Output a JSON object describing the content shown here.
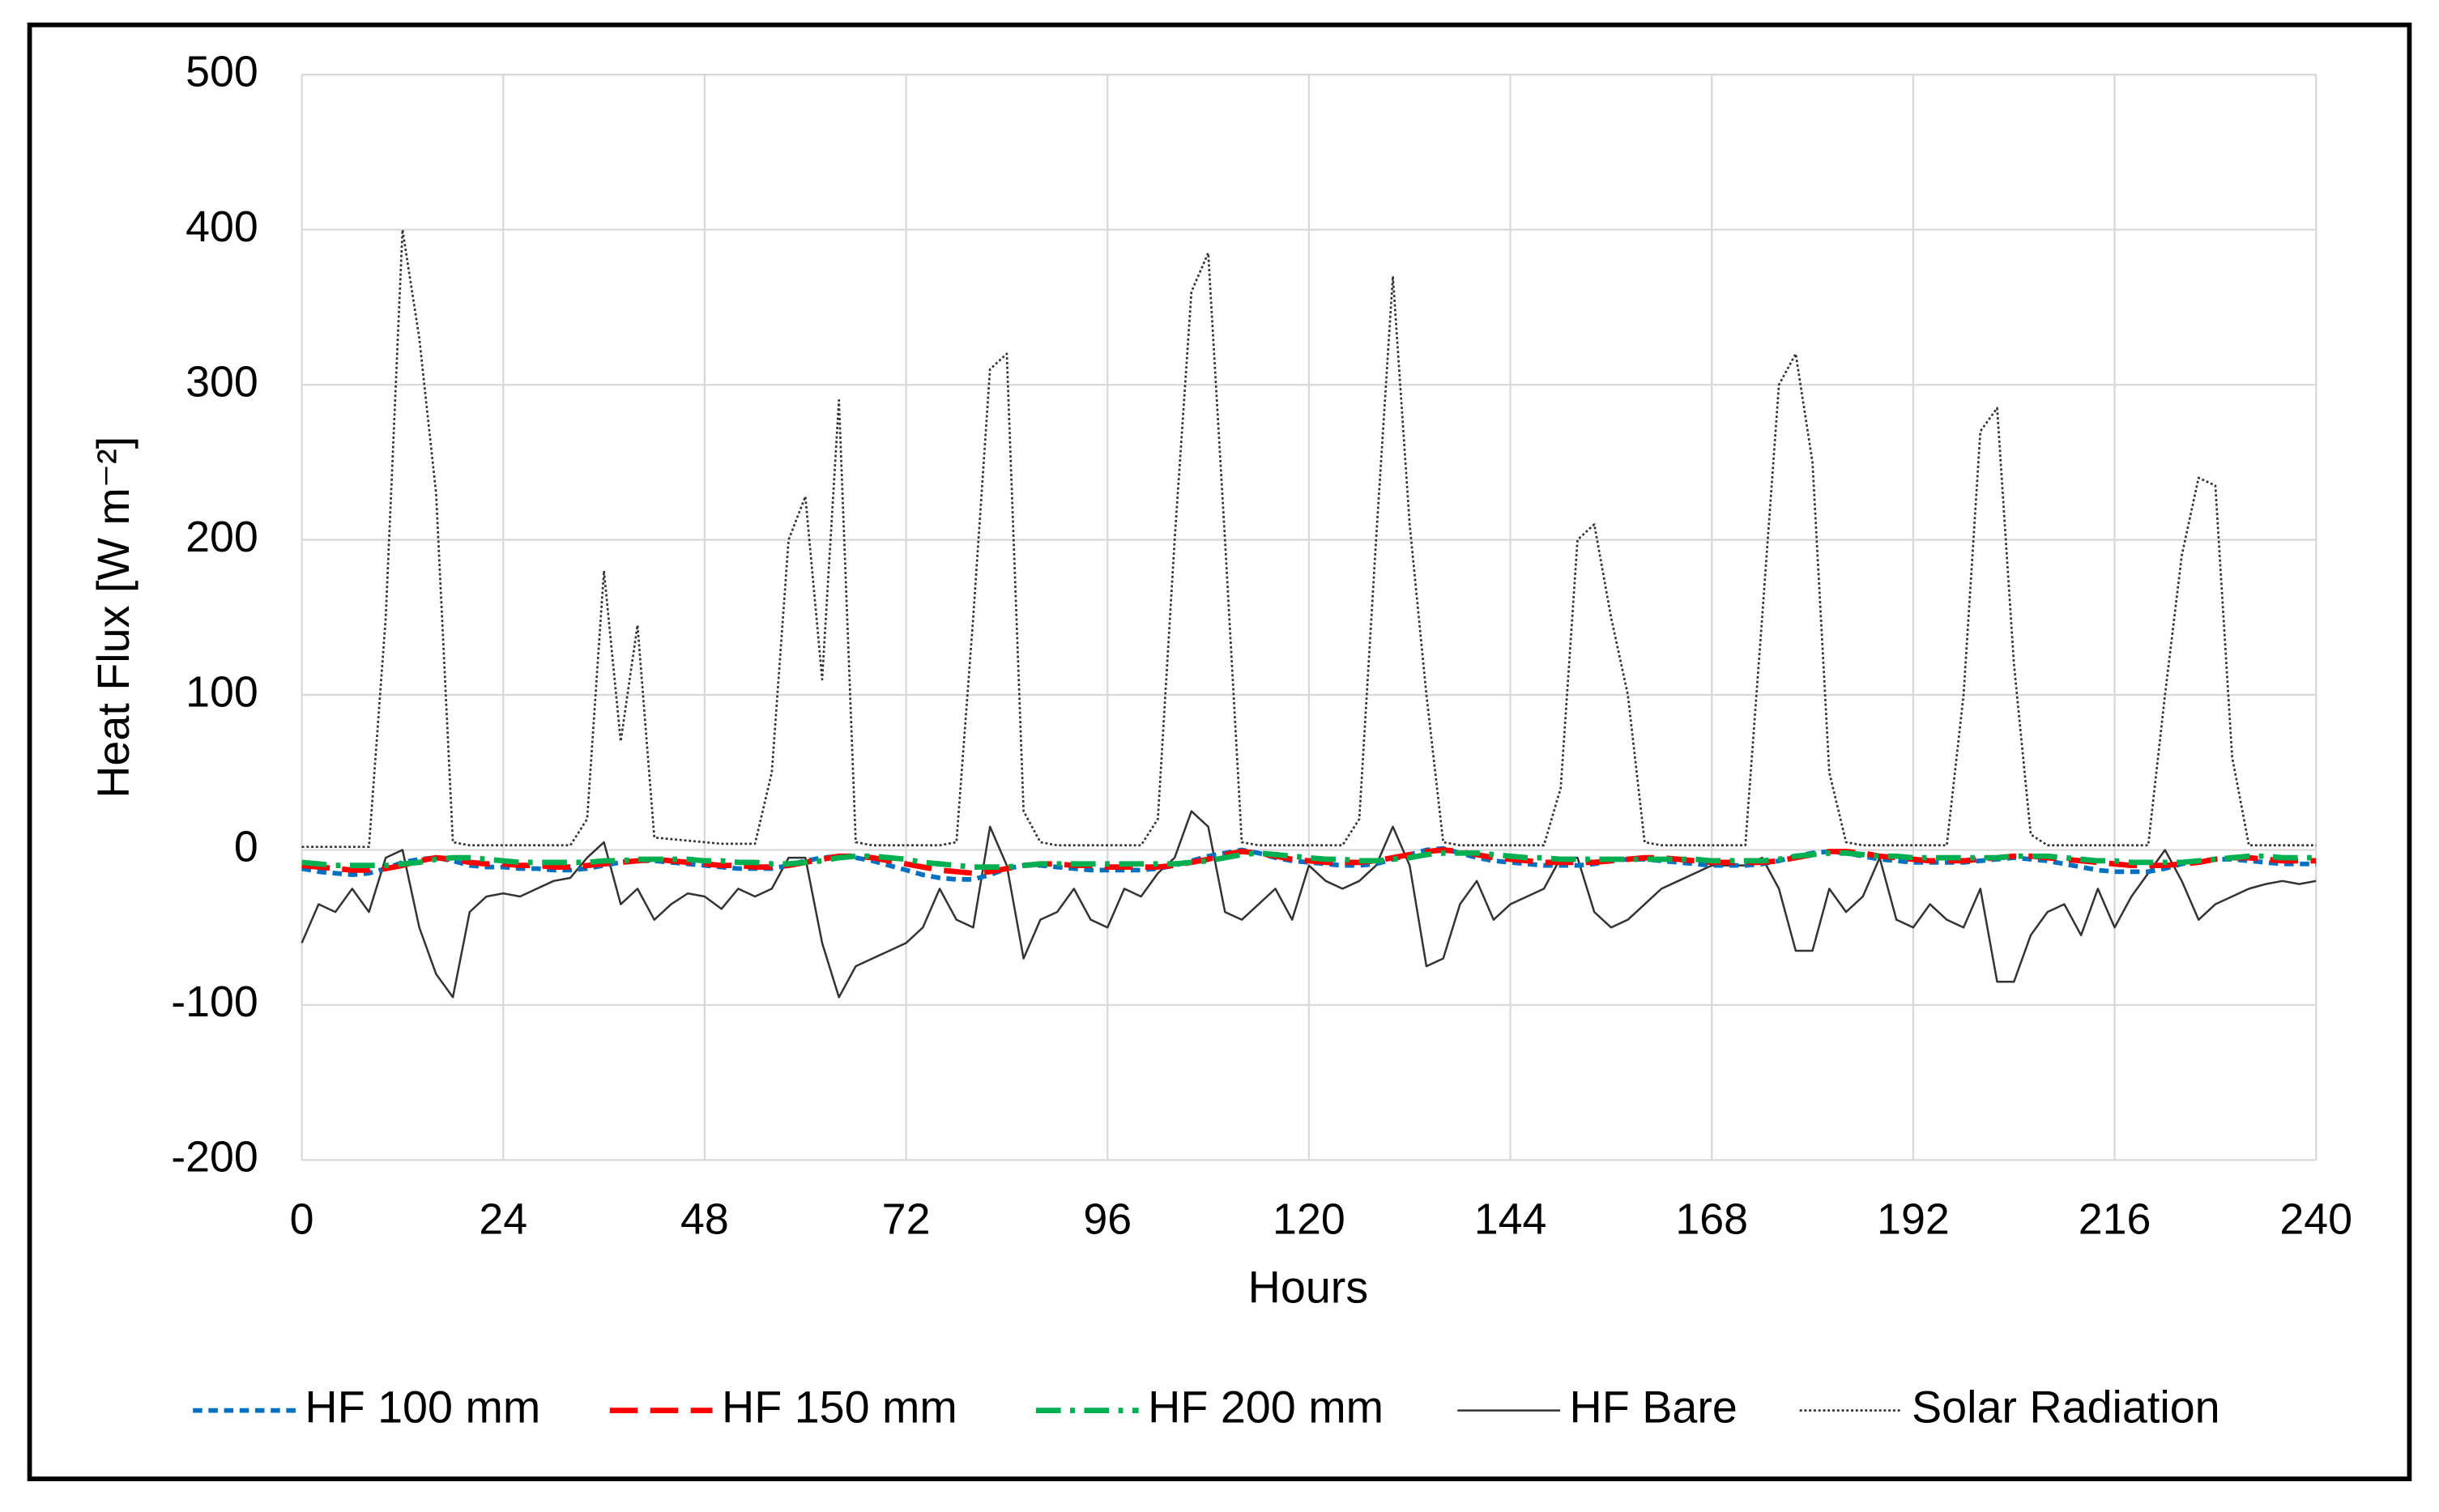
{
  "chart_data": {
    "type": "line",
    "x_label": "Hours",
    "y_label": "Heat Flux [W m⁻²]",
    "xlim": [
      0,
      240
    ],
    "xticks": [
      0,
      24,
      48,
      72,
      96,
      120,
      144,
      168,
      192,
      216,
      240
    ],
    "ylim": [
      -200,
      500
    ],
    "yticks": [
      -200,
      -100,
      0,
      100,
      200,
      300,
      400,
      500
    ],
    "grid": true,
    "legend": "bottom",
    "x": [
      0,
      2,
      4,
      6,
      8,
      10,
      12,
      14,
      16,
      18,
      20,
      22,
      24,
      26,
      28,
      30,
      32,
      34,
      36,
      38,
      40,
      42,
      44,
      46,
      48,
      50,
      52,
      54,
      56,
      58,
      60,
      62,
      64,
      66,
      68,
      70,
      72,
      74,
      76,
      78,
      80,
      82,
      84,
      86,
      88,
      90,
      92,
      94,
      96,
      98,
      100,
      102,
      104,
      106,
      108,
      110,
      112,
      114,
      116,
      118,
      120,
      122,
      124,
      126,
      128,
      130,
      132,
      134,
      136,
      138,
      140,
      142,
      144,
      146,
      148,
      150,
      152,
      154,
      156,
      158,
      160,
      162,
      164,
      166,
      168,
      170,
      172,
      174,
      176,
      178,
      180,
      182,
      184,
      186,
      188,
      190,
      192,
      194,
      196,
      198,
      200,
      202,
      204,
      206,
      208,
      210,
      212,
      214,
      216,
      218,
      220,
      222,
      224,
      226,
      228,
      230,
      232,
      234,
      236,
      238,
      240
    ],
    "series": [
      {
        "name": "HF 100 mm",
        "color": "#0070c0",
        "style": "dash",
        "values": [
          -12,
          -14,
          -15,
          -16,
          -15,
          -12,
          -8,
          -6,
          -5,
          -7,
          -10,
          -11,
          -11,
          -12,
          -12,
          -13,
          -13,
          -12,
          -10,
          -8,
          -7,
          -7,
          -8,
          -9,
          -10,
          -11,
          -12,
          -12,
          -12,
          -10,
          -7,
          -5,
          -4,
          -5,
          -7,
          -10,
          -13,
          -16,
          -18,
          -19,
          -19,
          -16,
          -12,
          -10,
          -10,
          -11,
          -12,
          -13,
          -13,
          -13,
          -13,
          -12,
          -10,
          -7,
          -4,
          -2,
          0,
          -2,
          -5,
          -7,
          -8,
          -9,
          -10,
          -10,
          -9,
          -6,
          -3,
          0,
          1,
          -2,
          -5,
          -7,
          -8,
          -9,
          -10,
          -10,
          -10,
          -9,
          -7,
          -6,
          -6,
          -7,
          -8,
          -9,
          -10,
          -10,
          -10,
          -9,
          -7,
          -4,
          -2,
          -1,
          -2,
          -4,
          -6,
          -7,
          -8,
          -8,
          -8,
          -8,
          -7,
          -6,
          -5,
          -6,
          -7,
          -9,
          -11,
          -13,
          -14,
          -14,
          -14,
          -12,
          -9,
          -7,
          -6,
          -6,
          -7,
          -8,
          -9,
          -9,
          -9
        ]
      },
      {
        "name": "HF 150 mm",
        "color": "#ff0000",
        "style": "long-dash",
        "values": [
          -10,
          -11,
          -12,
          -13,
          -13,
          -12,
          -10,
          -7,
          -5,
          -6,
          -8,
          -9,
          -9,
          -10,
          -10,
          -11,
          -11,
          -10,
          -9,
          -8,
          -7,
          -6,
          -7,
          -8,
          -9,
          -10,
          -10,
          -11,
          -11,
          -10,
          -8,
          -6,
          -4,
          -4,
          -5,
          -7,
          -9,
          -11,
          -13,
          -14,
          -15,
          -14,
          -12,
          -10,
          -9,
          -9,
          -10,
          -10,
          -11,
          -11,
          -11,
          -11,
          -10,
          -8,
          -6,
          -3,
          -1,
          -2,
          -4,
          -6,
          -7,
          -8,
          -8,
          -8,
          -7,
          -5,
          -3,
          -1,
          0,
          -1,
          -3,
          -5,
          -6,
          -7,
          -8,
          -8,
          -8,
          -8,
          -7,
          -6,
          -5,
          -5,
          -6,
          -7,
          -8,
          -8,
          -8,
          -8,
          -7,
          -5,
          -3,
          -1,
          -1,
          -2,
          -4,
          -5,
          -6,
          -7,
          -7,
          -7,
          -6,
          -5,
          -4,
          -4,
          -5,
          -6,
          -7,
          -8,
          -9,
          -10,
          -10,
          -10,
          -9,
          -8,
          -6,
          -5,
          -5,
          -6,
          -7,
          -7,
          -7
        ]
      },
      {
        "name": "HF 200 mm",
        "color": "#00b050",
        "style": "dash-dot",
        "values": [
          -8,
          -9,
          -10,
          -10,
          -10,
          -10,
          -9,
          -8,
          -6,
          -5,
          -5,
          -6,
          -7,
          -8,
          -8,
          -8,
          -8,
          -8,
          -7,
          -7,
          -6,
          -6,
          -6,
          -6,
          -7,
          -7,
          -8,
          -8,
          -9,
          -9,
          -8,
          -7,
          -5,
          -4,
          -4,
          -5,
          -6,
          -8,
          -9,
          -10,
          -11,
          -11,
          -11,
          -10,
          -9,
          -9,
          -9,
          -9,
          -9,
          -9,
          -9,
          -9,
          -9,
          -8,
          -7,
          -5,
          -3,
          -2,
          -3,
          -4,
          -5,
          -6,
          -6,
          -7,
          -7,
          -6,
          -5,
          -3,
          -2,
          -2,
          -2,
          -3,
          -4,
          -5,
          -5,
          -6,
          -6,
          -6,
          -6,
          -6,
          -6,
          -6,
          -6,
          -6,
          -7,
          -7,
          -7,
          -7,
          -6,
          -4,
          -3,
          -2,
          -2,
          -3,
          -4,
          -4,
          -5,
          -5,
          -5,
          -5,
          -5,
          -5,
          -4,
          -4,
          -4,
          -5,
          -6,
          -7,
          -7,
          -8,
          -8,
          -8,
          -8,
          -7,
          -6,
          -5,
          -4,
          -4,
          -5,
          -5,
          -5
        ]
      },
      {
        "name": "HF Bare",
        "color": "#333333",
        "style": "solid",
        "values": [
          -60,
          -35,
          -40,
          -25,
          -40,
          -5,
          0,
          -50,
          -80,
          -95,
          -40,
          -30,
          -28,
          -30,
          -25,
          -20,
          -18,
          -5,
          5,
          -35,
          -25,
          -45,
          -35,
          -28,
          -30,
          -38,
          -25,
          -30,
          -25,
          -5,
          -5,
          -60,
          -95,
          -75,
          -70,
          -65,
          -60,
          -50,
          -25,
          -45,
          -50,
          15,
          -10,
          -70,
          -45,
          -40,
          -25,
          -45,
          -50,
          -25,
          -30,
          -15,
          -5,
          25,
          15,
          -40,
          -45,
          -35,
          -25,
          -45,
          -10,
          -20,
          -25,
          -20,
          -10,
          15,
          -10,
          -75,
          -70,
          -35,
          -20,
          -45,
          -35,
          -30,
          -25,
          -5,
          -5,
          -40,
          -50,
          -45,
          -35,
          -25,
          -20,
          -15,
          -10,
          -10,
          -10,
          -5,
          -25,
          -65,
          -65,
          -25,
          -40,
          -30,
          -5,
          -45,
          -50,
          -35,
          -45,
          -50,
          -25,
          -85,
          -85,
          -55,
          -40,
          -35,
          -55,
          -25,
          -50,
          -30,
          -15,
          0,
          -20,
          -45,
          -35,
          -30,
          -25,
          -22,
          -20,
          -22,
          -20
        ]
      },
      {
        "name": "Solar Radiation",
        "color": "#333333",
        "style": "dot",
        "values": [
          2,
          2,
          2,
          2,
          2,
          150,
          400,
          330,
          230,
          5,
          3,
          3,
          3,
          3,
          3,
          3,
          3,
          20,
          180,
          70,
          145,
          8,
          7,
          6,
          5,
          4,
          4,
          4,
          50,
          200,
          228,
          110,
          290,
          5,
          3,
          3,
          3,
          3,
          3,
          5,
          150,
          310,
          320,
          25,
          5,
          3,
          3,
          3,
          3,
          3,
          3,
          20,
          200,
          360,
          385,
          200,
          5,
          3,
          3,
          3,
          3,
          3,
          3,
          20,
          200,
          370,
          210,
          100,
          5,
          3,
          3,
          3,
          3,
          3,
          3,
          40,
          200,
          210,
          150,
          100,
          5,
          3,
          3,
          3,
          3,
          3,
          3,
          150,
          300,
          320,
          250,
          50,
          5,
          3,
          3,
          3,
          3,
          3,
          3,
          100,
          270,
          285,
          120,
          10,
          3,
          3,
          3,
          3,
          3,
          3,
          3,
          100,
          190,
          240,
          235,
          60,
          3,
          3,
          3,
          3,
          3
        ]
      }
    ]
  }
}
